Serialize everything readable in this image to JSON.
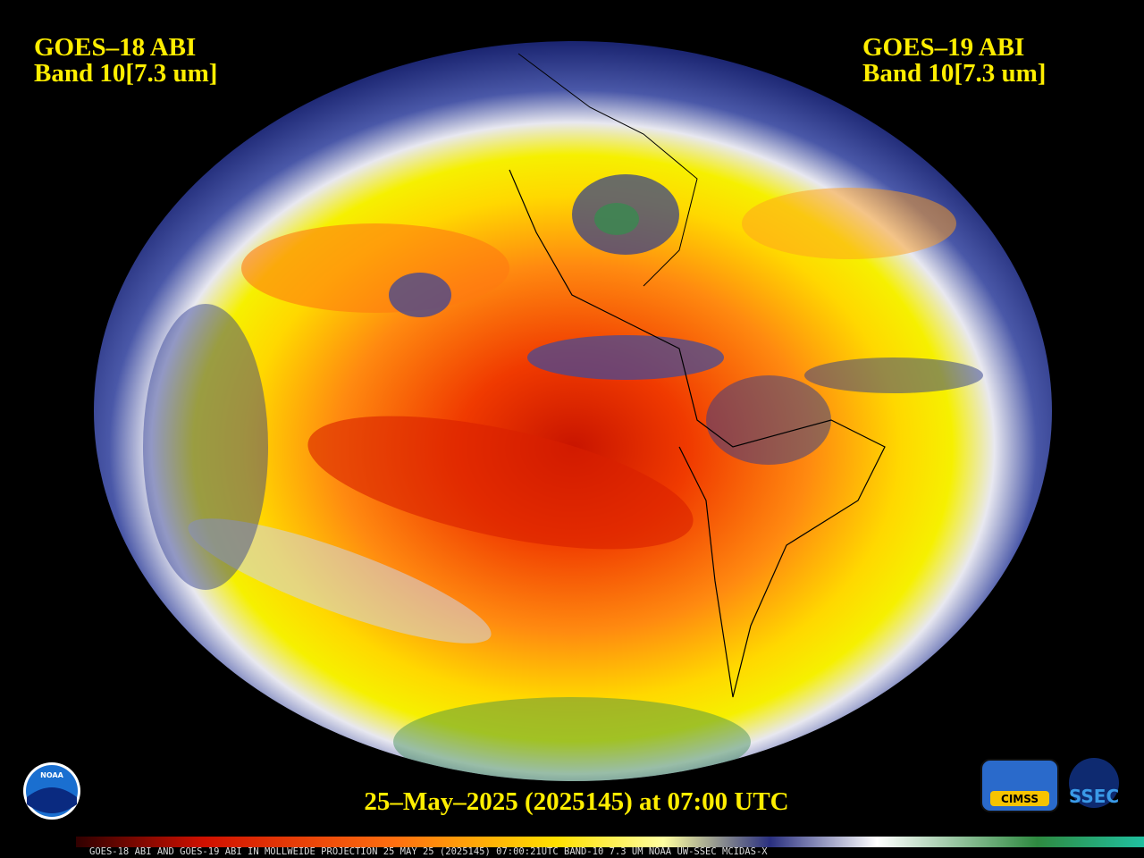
{
  "left_label": {
    "title": "GOES–18 ABI",
    "band": "Band 10[7.3 um]"
  },
  "right_label": {
    "title": "GOES–19 ABI",
    "band": "Band 10[7.3 um]"
  },
  "timestamp": "25–May–2025 (2025145) at 07:00 UTC",
  "footer": "GOES-18 ABI AND GOES-19 ABI IN MOLLWEIDE PROJECTION 25 MAY 25 (2025145) 07:00:21UTC BAND-10 7.3 UM NOAA UW-SSEC MCIDAS-X",
  "logos": {
    "noaa": "NOAA",
    "cimss": "CIMSS",
    "ssec": "SSEC"
  }
}
